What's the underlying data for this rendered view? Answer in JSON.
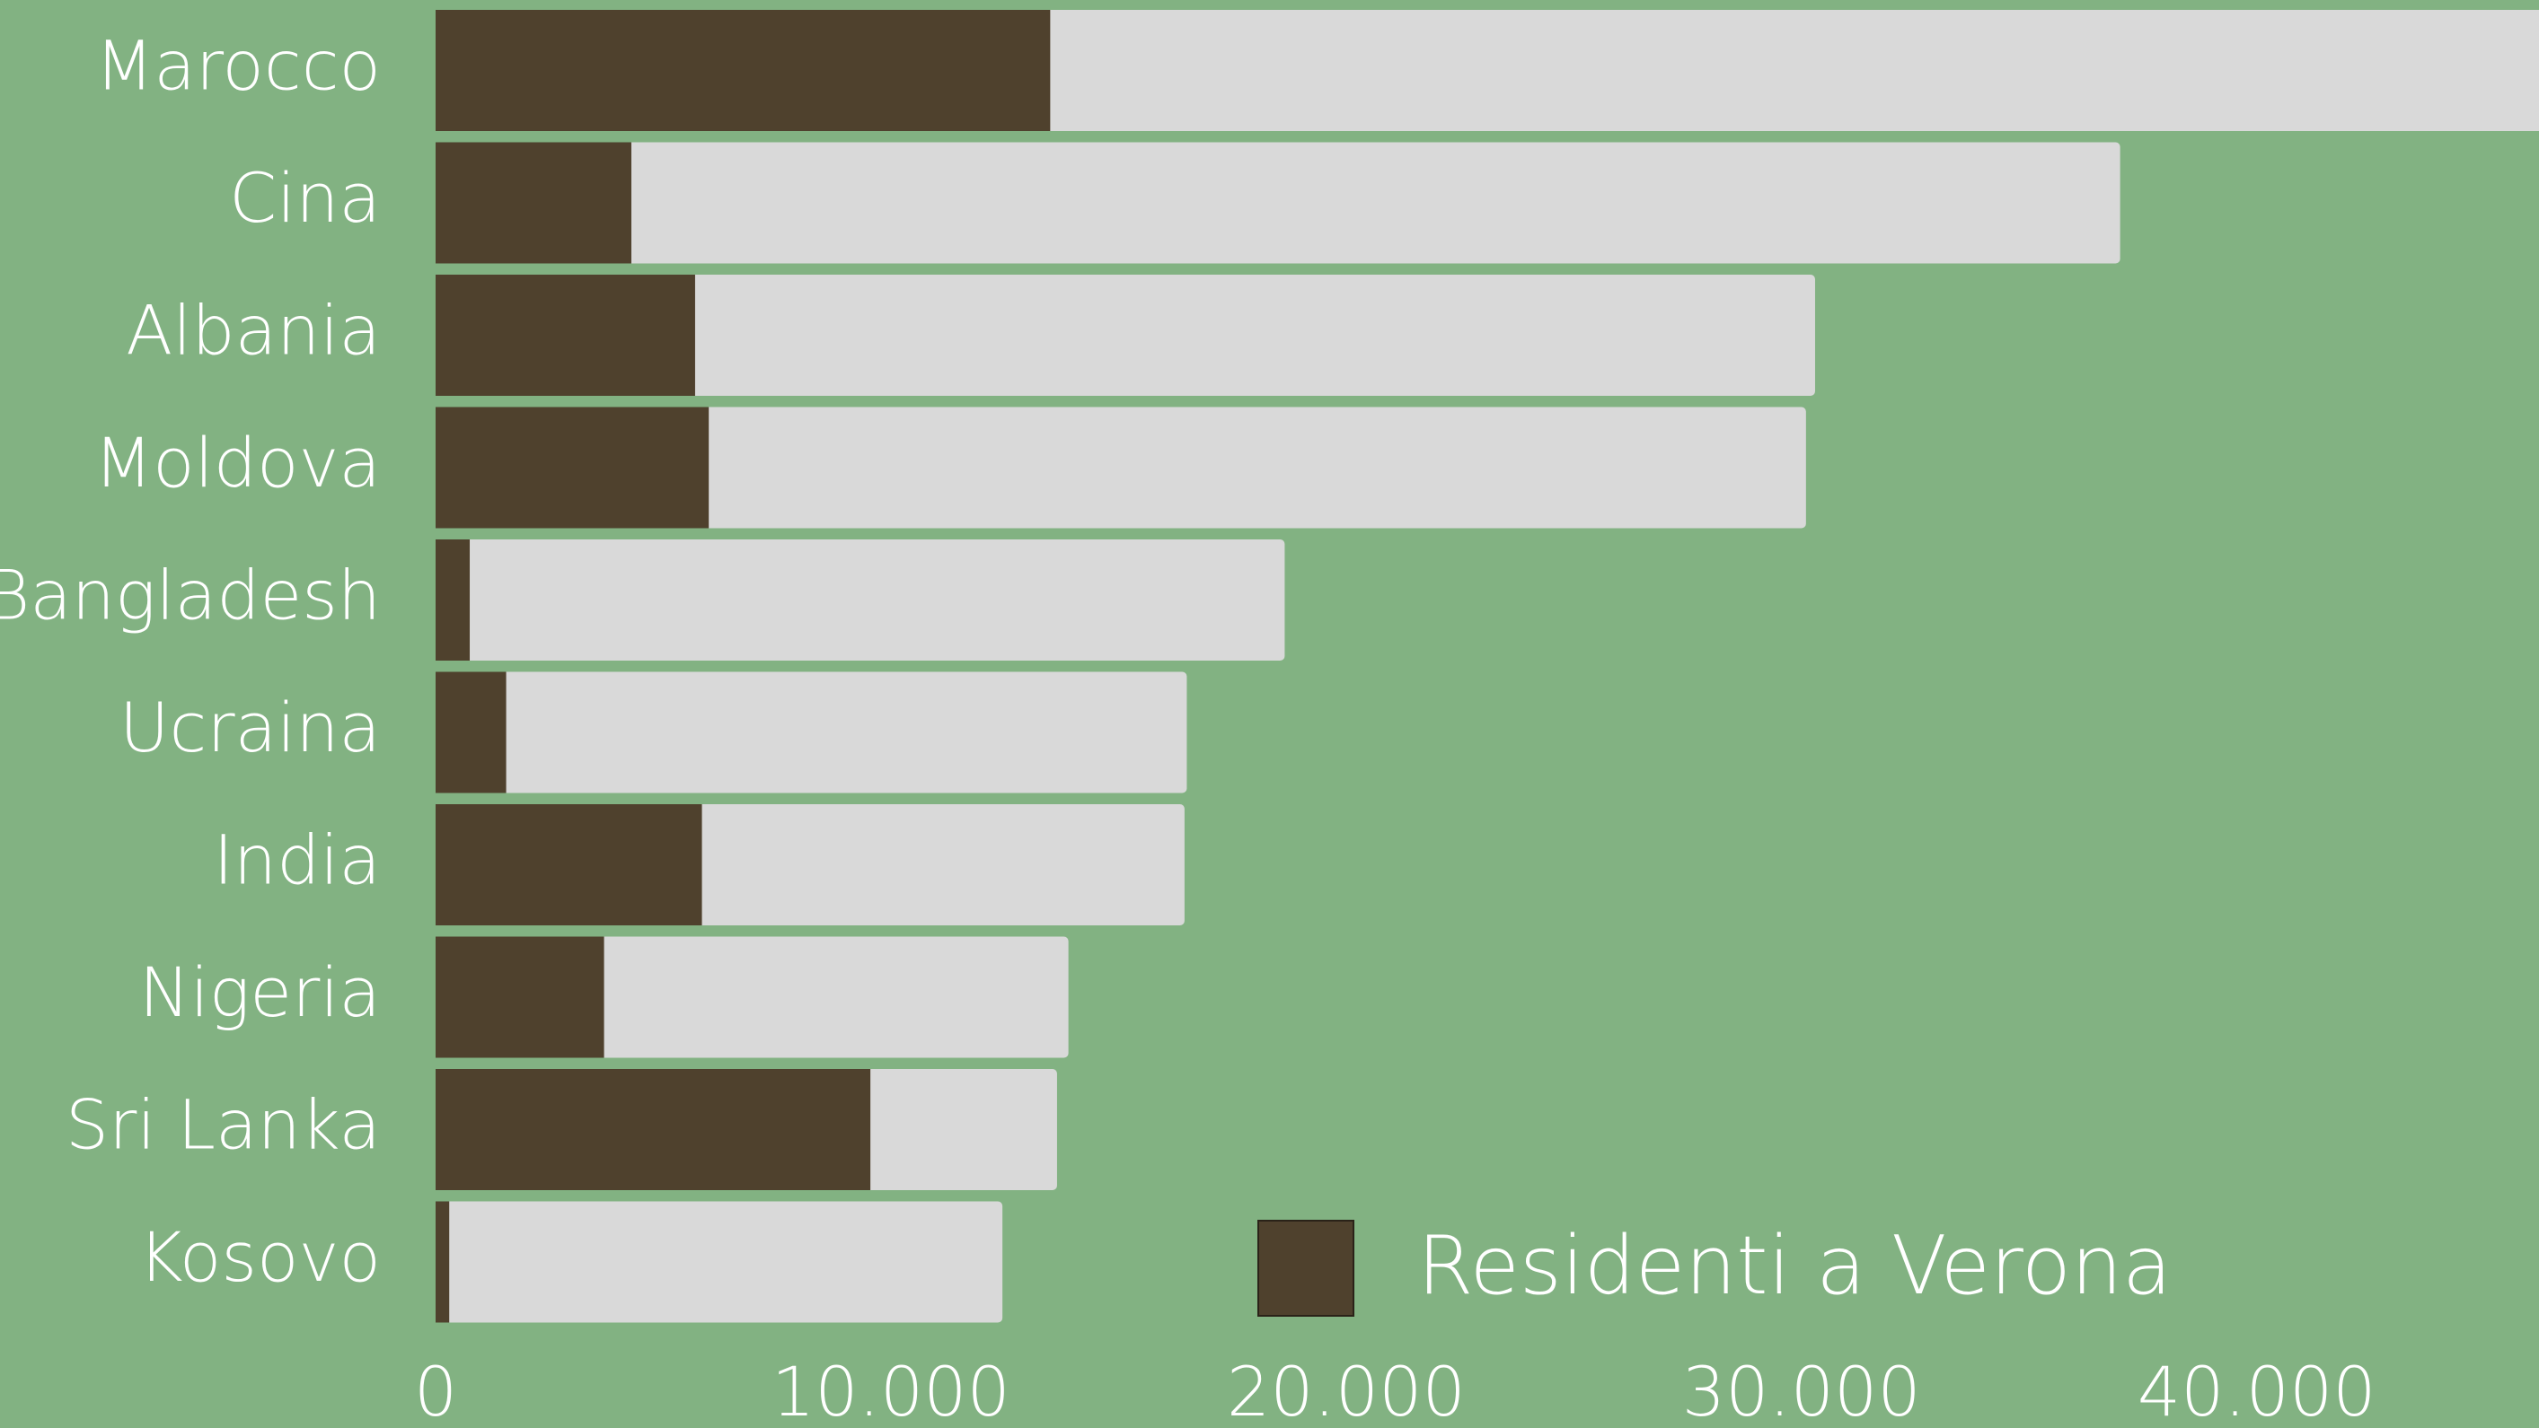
{
  "chart_data": {
    "type": "bar",
    "orientation": "horizontal",
    "categories": [
      "Marocco",
      "Cina",
      "Albania",
      "Moldova",
      "Bangladesh",
      "Ucraina",
      "India",
      "Nigeria",
      "Sri Lanka",
      "Kosovo"
    ],
    "series": [
      {
        "color": "#d9d9d9",
        "values": [
          48000,
          37000,
          30300,
          30100,
          18650,
          16500,
          16450,
          13900,
          13650,
          12450
        ]
      },
      {
        "name": "Residenti a Verona",
        "color": "#4f412d",
        "values": [
          13500,
          4300,
          5700,
          6000,
          750,
          1550,
          5850,
          3700,
          9550,
          300
        ]
      }
    ],
    "xlim": [
      0,
      46200
    ],
    "xticks": [
      0,
      {
        "value": 10000,
        "label": "10.000"
      },
      {
        "value": 20000,
        "label": "20.000"
      },
      {
        "value": 30000,
        "label": "30.000"
      },
      {
        "value": 40000,
        "label": "40.000"
      }
    ],
    "background": "#82b282"
  }
}
